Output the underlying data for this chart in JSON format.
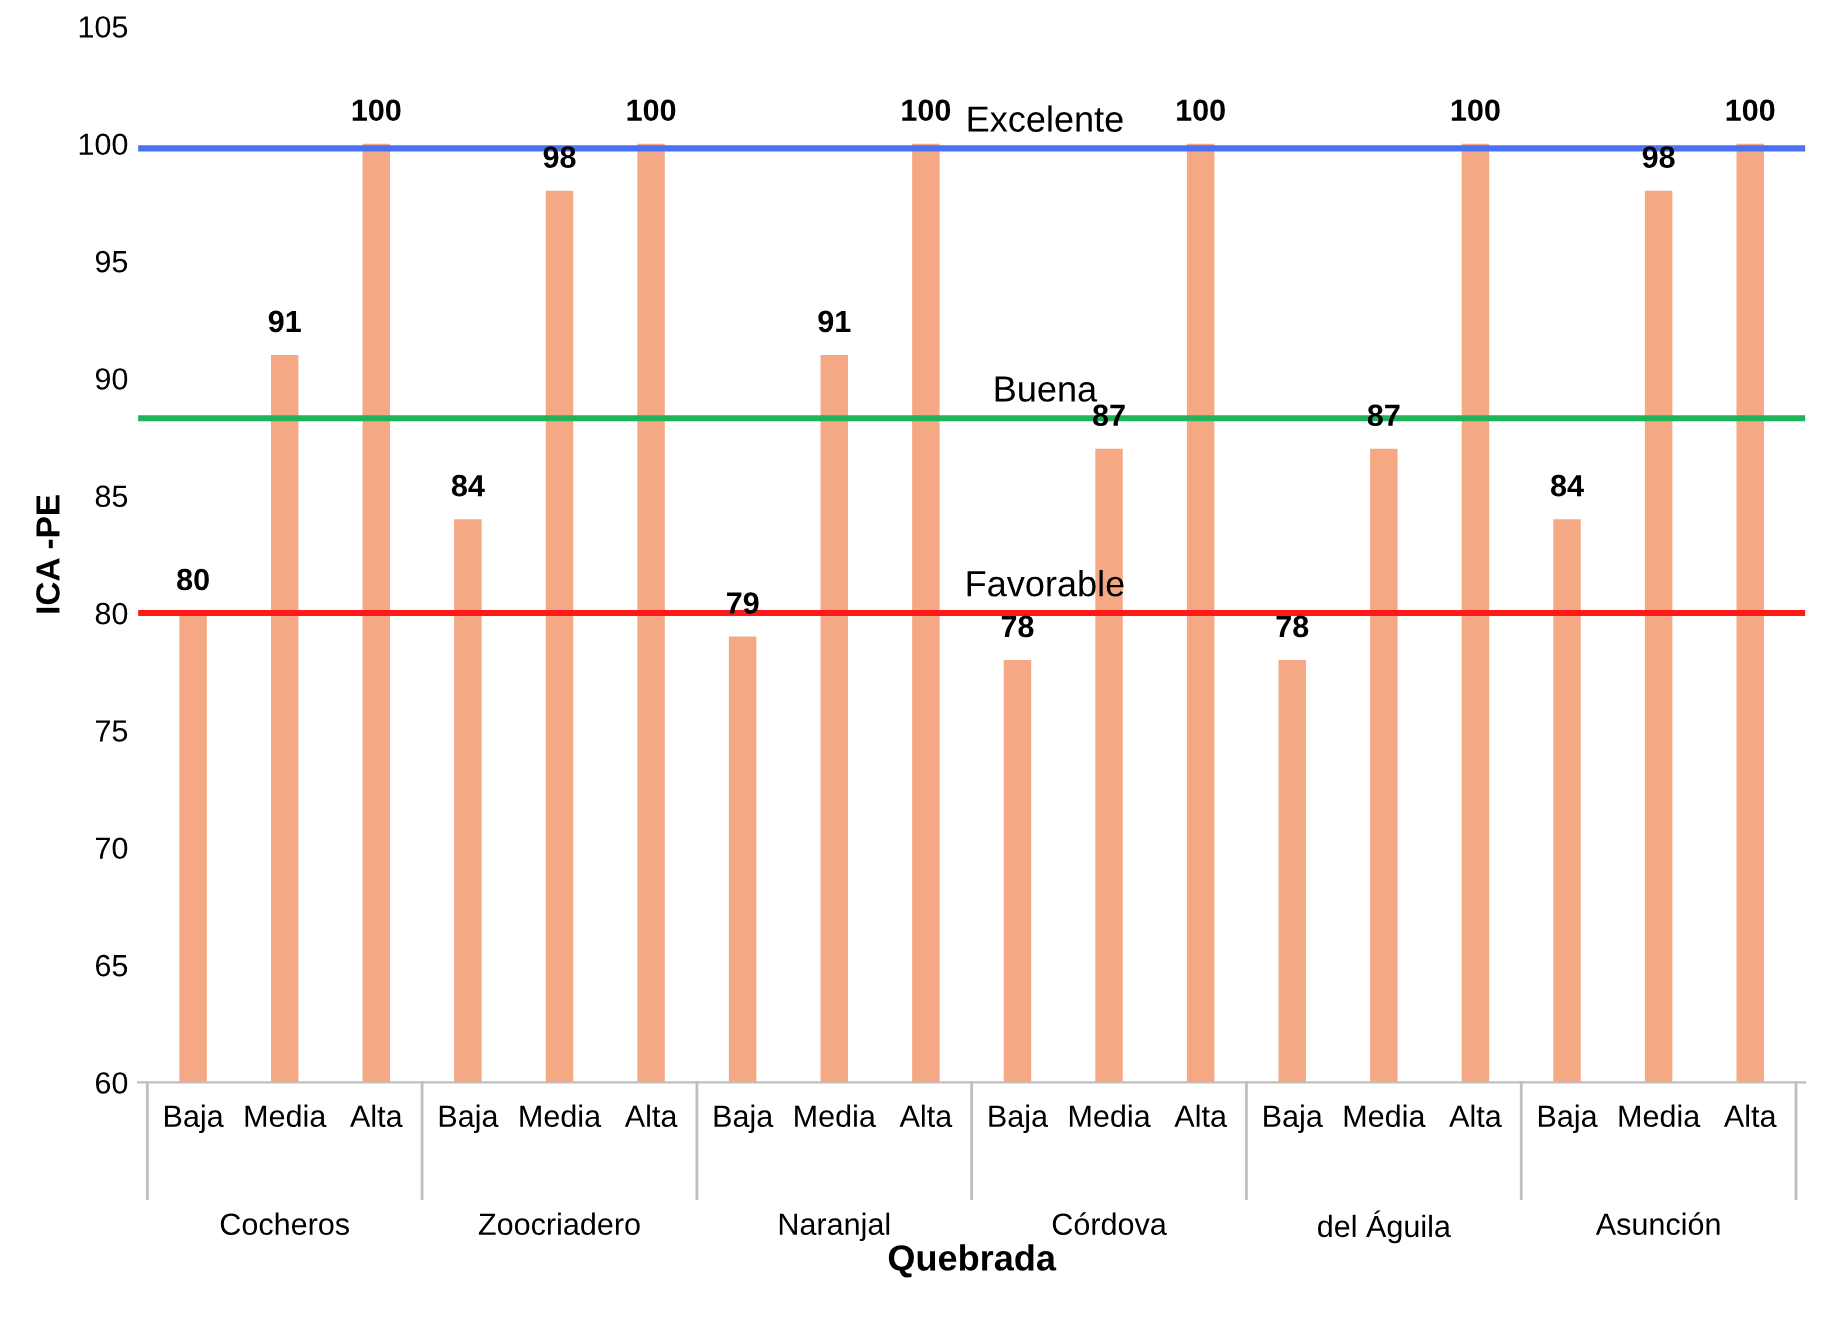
{
  "chart_data": {
    "type": "bar",
    "xlabel": "Quebrada",
    "ylabel": "ICA -PE",
    "categories": [
      "Baja",
      "Media",
      "Alta",
      "Baja",
      "Media",
      "Alta",
      "Baja",
      "Media",
      "Alta",
      "Baja",
      "Media",
      "Alta",
      "Baja",
      "Media",
      "Alta",
      "Baja",
      "Media",
      "Alta"
    ],
    "values": [
      80,
      91,
      100,
      84,
      98,
      100,
      79,
      91,
      100,
      78,
      87,
      100,
      78,
      87,
      100,
      84,
      98,
      100
    ],
    "color": "#f4a984",
    "data_labels": true,
    "ylim": [
      60,
      105
    ],
    "yticks": [
      60,
      65,
      70,
      75,
      80,
      85,
      90,
      95,
      100,
      105
    ],
    "grid": false,
    "ref_lines": [
      {
        "axis": "y",
        "value": 99.8,
        "label": "Excelente",
        "color": "#4a72f0"
      },
      {
        "axis": "y",
        "value": 88.3,
        "label": "Buena",
        "color": "#1fb35a"
      },
      {
        "axis": "y",
        "value": 80,
        "label": "Favorable",
        "color": "#ff1a1a"
      }
    ],
    "annotations": [
      "Cocheros",
      "Zoocriadero",
      "Naranjal",
      "Córdova",
      "del Águila",
      "Asunción"
    ]
  }
}
